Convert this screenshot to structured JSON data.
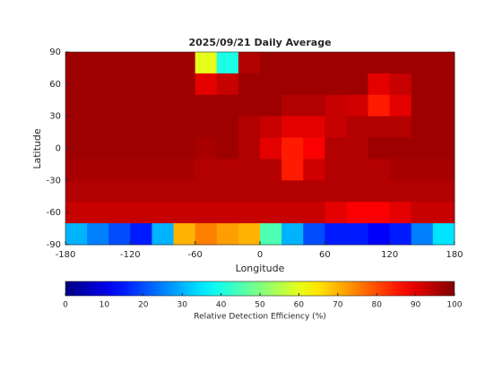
{
  "chart_data": {
    "type": "heatmap",
    "title": "2025/09/21 Daily Average",
    "xlabel": "Longitude",
    "ylabel": "Latitude",
    "x": [
      -170,
      -150,
      -130,
      -110,
      -90,
      -70,
      -50,
      -30,
      -10,
      10,
      30,
      50,
      70,
      90,
      110,
      130,
      150,
      170
    ],
    "y": [
      80,
      60,
      40,
      20,
      0,
      -20,
      -40,
      -60,
      -80
    ],
    "z": [
      [
        97,
        97,
        97,
        97,
        97,
        97,
        60,
        40,
        95,
        97,
        97,
        97,
        97,
        97,
        97,
        97,
        97,
        97
      ],
      [
        97,
        97,
        97,
        97,
        97,
        97,
        90,
        93,
        97,
        97,
        97,
        97,
        97,
        97,
        90,
        93,
        97,
        97
      ],
      [
        97,
        97,
        97,
        97,
        97,
        97,
        97,
        97,
        97,
        97,
        95,
        95,
        93,
        92,
        85,
        90,
        97,
        97
      ],
      [
        97,
        97,
        97,
        97,
        97,
        97,
        97,
        97,
        95,
        93,
        90,
        90,
        93,
        95,
        95,
        95,
        97,
        97
      ],
      [
        97,
        97,
        97,
        97,
        97,
        97,
        96,
        97,
        95,
        90,
        85,
        88,
        95,
        95,
        97,
        97,
        97,
        97
      ],
      [
        96,
        96,
        96,
        96,
        96,
        96,
        95,
        95,
        95,
        95,
        85,
        92,
        95,
        95,
        95,
        96,
        96,
        96
      ],
      [
        95,
        95,
        95,
        95,
        95,
        95,
        95,
        95,
        95,
        95,
        95,
        95,
        95,
        95,
        95,
        95,
        95,
        95
      ],
      [
        93,
        93,
        93,
        93,
        93,
        93,
        93,
        93,
        93,
        93,
        93,
        93,
        90,
        88,
        88,
        90,
        93,
        93
      ],
      [
        30,
        25,
        20,
        15,
        30,
        70,
        75,
        72,
        70,
        45,
        30,
        20,
        15,
        15,
        12,
        15,
        25,
        35
      ]
    ],
    "xlim": [
      -180,
      180
    ],
    "ylim": [
      -90,
      90
    ],
    "xticks": [
      -180,
      -120,
      -60,
      0,
      60,
      120,
      180
    ],
    "yticks": [
      -90,
      -60,
      -30,
      0,
      30,
      60,
      90
    ],
    "clim": [
      0,
      100
    ],
    "cticks": [
      0,
      10,
      20,
      30,
      40,
      50,
      60,
      70,
      80,
      90,
      100
    ],
    "colorbar_label": "Relative Detection Efficiency (%)",
    "colormap": "jet"
  }
}
